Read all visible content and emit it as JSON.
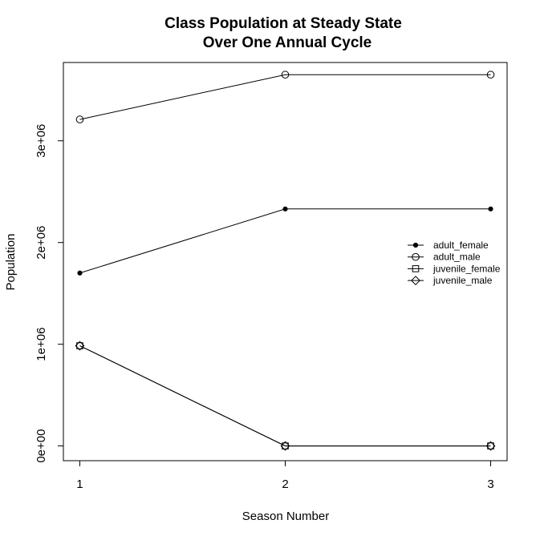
{
  "chart_data": {
    "type": "line",
    "title_lines": [
      "Class Population at Steady State",
      "Over One Annual Cycle"
    ],
    "xlabel": "Season Number",
    "ylabel": "Population",
    "x": [
      1,
      2,
      3
    ],
    "x_ticks": [
      1,
      2,
      3
    ],
    "x_tick_labels": [
      "1",
      "2",
      "3"
    ],
    "xlim": [
      0.92,
      3.08
    ],
    "y_ticks": [
      0,
      1000000,
      2000000,
      3000000
    ],
    "y_tick_labels": [
      "0e+00",
      "1e+06",
      "2e+06",
      "3e+06"
    ],
    "ylim": [
      -145000,
      3770000
    ],
    "grid": false,
    "legend_position": "right",
    "series": [
      {
        "name": "adult_female",
        "marker": "filled-circle",
        "values": [
          1700000,
          2330000,
          2330000
        ]
      },
      {
        "name": "adult_male",
        "marker": "open-circle",
        "values": [
          3210000,
          3650000,
          3650000
        ]
      },
      {
        "name": "juvenile_female",
        "marker": "open-square",
        "values": [
          985000,
          0,
          0
        ]
      },
      {
        "name": "juvenile_male",
        "marker": "open-diamond",
        "values": [
          985000,
          0,
          0
        ]
      }
    ]
  }
}
